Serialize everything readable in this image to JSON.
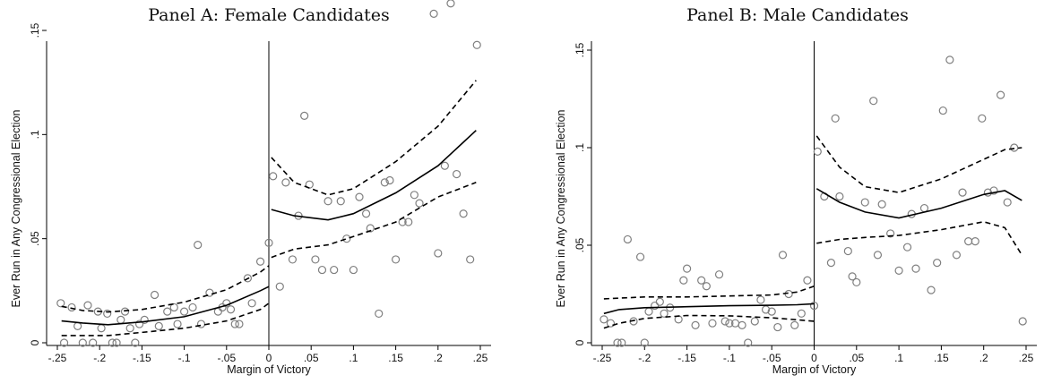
{
  "colors": {
    "point_stroke": "#7f7f7f",
    "line": "#000000",
    "background": "#ffffff"
  },
  "chart_data": [
    {
      "type": "scatter",
      "title": "Panel A: Female Candidates",
      "xlabel": "Margin of Victory",
      "ylabel": "Ever Run in Any Congressional Election",
      "xlim": [
        -0.25,
        0.25
      ],
      "ylim": [
        0,
        0.16
      ],
      "xticks": [
        -0.25,
        -0.2,
        -0.15,
        -0.1,
        -0.05,
        0,
        0.05,
        0.1,
        0.15,
        0.2,
        0.25
      ],
      "xtick_labels": [
        "-.25",
        "-.2",
        "-.15",
        "-.1",
        "-.05",
        "0",
        ".05",
        ".1",
        ".15",
        ".2",
        ".25"
      ],
      "yticks": [
        0,
        0.05,
        0.1,
        0.15
      ],
      "ytick_labels": [
        "0",
        ".05",
        ".1",
        ".15"
      ],
      "cutoff": 0,
      "points": [
        [
          -0.246,
          0.019
        ],
        [
          -0.242,
          0.0
        ],
        [
          -0.233,
          0.017
        ],
        [
          -0.226,
          0.008
        ],
        [
          -0.22,
          0.0
        ],
        [
          -0.214,
          0.018
        ],
        [
          -0.208,
          0.0
        ],
        [
          -0.202,
          0.015
        ],
        [
          -0.198,
          0.007
        ],
        [
          -0.191,
          0.014
        ],
        [
          -0.185,
          0.0
        ],
        [
          -0.18,
          0.0
        ],
        [
          -0.175,
          0.011
        ],
        [
          -0.17,
          0.015
        ],
        [
          -0.164,
          0.007
        ],
        [
          -0.158,
          0.0
        ],
        [
          -0.153,
          0.009
        ],
        [
          -0.147,
          0.011
        ],
        [
          -0.135,
          0.023
        ],
        [
          -0.13,
          0.008
        ],
        [
          -0.12,
          0.015
        ],
        [
          -0.112,
          0.017
        ],
        [
          -0.108,
          0.009
        ],
        [
          -0.1,
          0.015
        ],
        [
          -0.09,
          0.017
        ],
        [
          -0.084,
          0.047
        ],
        [
          -0.08,
          0.009
        ],
        [
          -0.07,
          0.024
        ],
        [
          -0.06,
          0.015
        ],
        [
          -0.055,
          0.017
        ],
        [
          -0.05,
          0.019
        ],
        [
          -0.045,
          0.016
        ],
        [
          -0.04,
          0.009
        ],
        [
          -0.035,
          0.009
        ],
        [
          -0.025,
          0.031
        ],
        [
          -0.02,
          0.019
        ],
        [
          -0.01,
          0.039
        ],
        [
          0.0,
          0.048
        ],
        [
          0.005,
          0.08
        ],
        [
          0.013,
          0.027
        ],
        [
          0.02,
          0.077
        ],
        [
          0.028,
          0.04
        ],
        [
          0.035,
          0.061
        ],
        [
          0.042,
          0.109
        ],
        [
          0.048,
          0.076
        ],
        [
          0.055,
          0.04
        ],
        [
          0.063,
          0.035
        ],
        [
          0.07,
          0.068
        ],
        [
          0.077,
          0.035
        ],
        [
          0.085,
          0.068
        ],
        [
          0.092,
          0.05
        ],
        [
          0.1,
          0.035
        ],
        [
          0.107,
          0.07
        ],
        [
          0.115,
          0.062
        ],
        [
          0.12,
          0.055
        ],
        [
          0.13,
          0.014
        ],
        [
          0.137,
          0.077
        ],
        [
          0.143,
          0.078
        ],
        [
          0.15,
          0.04
        ],
        [
          0.158,
          0.058
        ],
        [
          0.165,
          0.058
        ],
        [
          0.172,
          0.071
        ],
        [
          0.178,
          0.067
        ],
        [
          0.195,
          0.158
        ],
        [
          0.2,
          0.043
        ],
        [
          0.208,
          0.085
        ],
        [
          0.215,
          0.163
        ],
        [
          0.222,
          0.081
        ],
        [
          0.23,
          0.062
        ],
        [
          0.238,
          0.04
        ],
        [
          0.246,
          0.143
        ]
      ],
      "fit_left": [
        [
          -0.245,
          0.0105
        ],
        [
          -0.22,
          0.0095
        ],
        [
          -0.19,
          0.0087
        ],
        [
          -0.15,
          0.01
        ],
        [
          -0.1,
          0.0125
        ],
        [
          -0.05,
          0.018
        ],
        [
          -0.01,
          0.025
        ],
        [
          0.0,
          0.027
        ]
      ],
      "ci_left_upper": [
        [
          -0.245,
          0.0175
        ],
        [
          -0.22,
          0.0155
        ],
        [
          -0.19,
          0.0148
        ],
        [
          -0.15,
          0.016
        ],
        [
          -0.1,
          0.0195
        ],
        [
          -0.05,
          0.0255
        ],
        [
          -0.01,
          0.034
        ],
        [
          0.0,
          0.037
        ]
      ],
      "ci_left_lower": [
        [
          -0.245,
          0.0035
        ],
        [
          -0.22,
          0.0035
        ],
        [
          -0.19,
          0.0035
        ],
        [
          -0.15,
          0.005
        ],
        [
          -0.1,
          0.007
        ],
        [
          -0.05,
          0.0105
        ],
        [
          -0.01,
          0.016
        ],
        [
          0.0,
          0.019
        ]
      ],
      "fit_right": [
        [
          0.003,
          0.064
        ],
        [
          0.03,
          0.061
        ],
        [
          0.07,
          0.059
        ],
        [
          0.1,
          0.062
        ],
        [
          0.15,
          0.072
        ],
        [
          0.2,
          0.085
        ],
        [
          0.245,
          0.102
        ]
      ],
      "ci_right_upper": [
        [
          0.003,
          0.089
        ],
        [
          0.03,
          0.077
        ],
        [
          0.07,
          0.071
        ],
        [
          0.1,
          0.074
        ],
        [
          0.15,
          0.087
        ],
        [
          0.2,
          0.104
        ],
        [
          0.245,
          0.126
        ]
      ],
      "ci_right_lower": [
        [
          0.003,
          0.041
        ],
        [
          0.03,
          0.045
        ],
        [
          0.07,
          0.047
        ],
        [
          0.1,
          0.051
        ],
        [
          0.15,
          0.058
        ],
        [
          0.2,
          0.07
        ],
        [
          0.245,
          0.077
        ]
      ]
    },
    {
      "type": "scatter",
      "title": "Panel B: Male Candidates",
      "xlabel": "Margin of Victory",
      "ylabel": "Ever Run in Any Congressional Election",
      "xlim": [
        -0.25,
        0.25
      ],
      "ylim": [
        0,
        0.15
      ],
      "xticks": [
        -0.25,
        -0.2,
        -0.15,
        -0.1,
        -0.05,
        0,
        0.05,
        0.1,
        0.15,
        0.2,
        0.25
      ],
      "xtick_labels": [
        "-.25",
        "-.2",
        "-.15",
        "-.1",
        "-.05",
        "0",
        ".05",
        ".1",
        ".15",
        ".2",
        ".25"
      ],
      "yticks": [
        0,
        0.05,
        0.1,
        0.15
      ],
      "ytick_labels": [
        "0",
        ".05",
        ".1",
        ".15"
      ],
      "cutoff": 0,
      "points": [
        [
          -0.248,
          0.012
        ],
        [
          -0.24,
          0.01
        ],
        [
          -0.232,
          0.0
        ],
        [
          -0.227,
          0.0
        ],
        [
          -0.22,
          0.053
        ],
        [
          -0.213,
          0.011
        ],
        [
          -0.205,
          0.044
        ],
        [
          -0.2,
          0.0
        ],
        [
          -0.195,
          0.016
        ],
        [
          -0.188,
          0.019
        ],
        [
          -0.182,
          0.021
        ],
        [
          -0.177,
          0.015
        ],
        [
          -0.17,
          0.018
        ],
        [
          -0.16,
          0.012
        ],
        [
          -0.154,
          0.032
        ],
        [
          -0.15,
          0.038
        ],
        [
          -0.14,
          0.009
        ],
        [
          -0.133,
          0.032
        ],
        [
          -0.127,
          0.029
        ],
        [
          -0.12,
          0.01
        ],
        [
          -0.112,
          0.035
        ],
        [
          -0.105,
          0.011
        ],
        [
          -0.1,
          0.01
        ],
        [
          -0.093,
          0.01
        ],
        [
          -0.085,
          0.009
        ],
        [
          -0.078,
          0.0
        ],
        [
          -0.07,
          0.011
        ],
        [
          -0.063,
          0.022
        ],
        [
          -0.057,
          0.017
        ],
        [
          -0.05,
          0.016
        ],
        [
          -0.043,
          0.008
        ],
        [
          -0.037,
          0.045
        ],
        [
          -0.03,
          0.025
        ],
        [
          -0.023,
          0.009
        ],
        [
          -0.015,
          0.015
        ],
        [
          -0.008,
          0.032
        ],
        [
          0.0,
          0.019
        ],
        [
          0.004,
          0.098
        ],
        [
          0.012,
          0.075
        ],
        [
          0.02,
          0.041
        ],
        [
          0.025,
          0.115
        ],
        [
          0.03,
          0.075
        ],
        [
          0.04,
          0.047
        ],
        [
          0.045,
          0.034
        ],
        [
          0.05,
          0.031
        ],
        [
          0.06,
          0.072
        ],
        [
          0.07,
          0.124
        ],
        [
          0.075,
          0.045
        ],
        [
          0.08,
          0.071
        ],
        [
          0.09,
          0.056
        ],
        [
          0.1,
          0.037
        ],
        [
          0.11,
          0.049
        ],
        [
          0.115,
          0.066
        ],
        [
          0.12,
          0.038
        ],
        [
          0.13,
          0.069
        ],
        [
          0.138,
          0.027
        ],
        [
          0.145,
          0.041
        ],
        [
          0.152,
          0.119
        ],
        [
          0.16,
          0.145
        ],
        [
          0.168,
          0.045
        ],
        [
          0.175,
          0.077
        ],
        [
          0.182,
          0.052
        ],
        [
          0.19,
          0.052
        ],
        [
          0.198,
          0.115
        ],
        [
          0.205,
          0.077
        ],
        [
          0.212,
          0.078
        ],
        [
          0.22,
          0.127
        ],
        [
          0.228,
          0.072
        ],
        [
          0.236,
          0.1
        ],
        [
          0.246,
          0.011
        ]
      ],
      "fit_left": [
        [
          -0.248,
          0.015
        ],
        [
          -0.23,
          0.017
        ],
        [
          -0.2,
          0.018
        ],
        [
          -0.15,
          0.0185
        ],
        [
          -0.1,
          0.019
        ],
        [
          -0.05,
          0.0192
        ],
        [
          -0.02,
          0.0195
        ],
        [
          0.0,
          0.02
        ]
      ],
      "ci_left_upper": [
        [
          -0.248,
          0.0225
        ],
        [
          -0.2,
          0.0235
        ],
        [
          -0.15,
          0.0235
        ],
        [
          -0.1,
          0.024
        ],
        [
          -0.05,
          0.0245
        ],
        [
          -0.02,
          0.026
        ],
        [
          0.0,
          0.029
        ]
      ],
      "ci_left_lower": [
        [
          -0.248,
          0.0075
        ],
        [
          -0.23,
          0.01
        ],
        [
          -0.2,
          0.0125
        ],
        [
          -0.15,
          0.014
        ],
        [
          -0.1,
          0.0138
        ],
        [
          -0.05,
          0.0128
        ],
        [
          -0.02,
          0.0118
        ],
        [
          0.0,
          0.011
        ]
      ],
      "fit_right": [
        [
          0.003,
          0.079
        ],
        [
          0.03,
          0.072
        ],
        [
          0.06,
          0.067
        ],
        [
          0.1,
          0.064
        ],
        [
          0.15,
          0.069
        ],
        [
          0.2,
          0.076
        ],
        [
          0.225,
          0.078
        ],
        [
          0.245,
          0.073
        ]
      ],
      "ci_right_upper": [
        [
          0.003,
          0.106
        ],
        [
          0.03,
          0.09
        ],
        [
          0.06,
          0.08
        ],
        [
          0.1,
          0.077
        ],
        [
          0.15,
          0.084
        ],
        [
          0.2,
          0.094
        ],
        [
          0.225,
          0.099
        ],
        [
          0.245,
          0.1
        ]
      ],
      "ci_right_lower": [
        [
          0.003,
          0.051
        ],
        [
          0.03,
          0.053
        ],
        [
          0.06,
          0.054
        ],
        [
          0.1,
          0.055
        ],
        [
          0.15,
          0.058
        ],
        [
          0.2,
          0.062
        ],
        [
          0.225,
          0.059
        ],
        [
          0.245,
          0.045
        ]
      ]
    }
  ]
}
